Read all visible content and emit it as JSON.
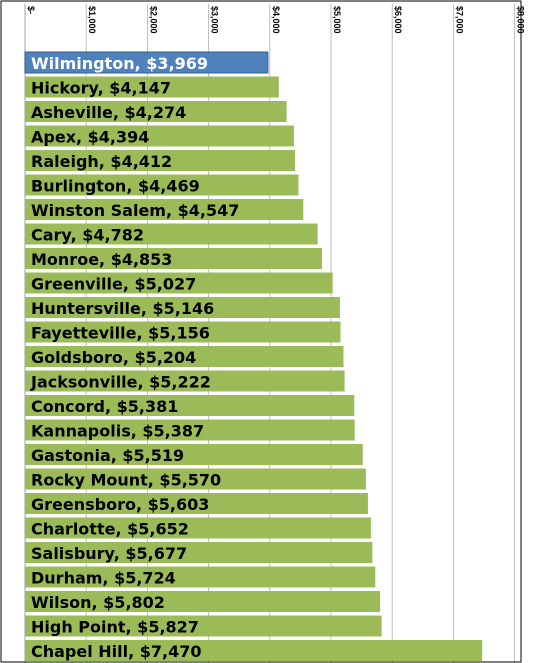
{
  "chart_data": {
    "type": "bar",
    "orientation": "horizontal",
    "x_ticks": [
      "$-",
      "$1,000",
      "$2,000",
      "$3,000",
      "$4,000",
      "$5,000",
      "$6,000",
      "$7,000",
      "$8,000"
    ],
    "xlim": [
      0,
      8000
    ],
    "grid": true,
    "colors": {
      "default_bar": "#9bbb59",
      "highlight_bar": "#4f81bd",
      "highlight_label": "#ffffff",
      "label": "#000000",
      "grid": "#b0b0b0"
    },
    "bars": [
      {
        "label": "Wilmington, $3,969",
        "city": "Wilmington",
        "value": 3969,
        "highlight": true
      },
      {
        "label": "Hickory, $4,147",
        "city": "Hickory",
        "value": 4147
      },
      {
        "label": "Asheville, $4,274",
        "city": "Asheville",
        "value": 4274
      },
      {
        "label": "Apex, $4,394",
        "city": "Apex",
        "value": 4394
      },
      {
        "label": "Raleigh, $4,412",
        "city": "Raleigh",
        "value": 4412
      },
      {
        "label": "Burlington, $4,469",
        "city": "Burlington",
        "value": 4469
      },
      {
        "label": "Winston Salem, $4,547",
        "city": "Winston Salem",
        "value": 4547
      },
      {
        "label": "Cary, $4,782",
        "city": "Cary",
        "value": 4782
      },
      {
        "label": "Monroe, $4,853",
        "city": "Monroe",
        "value": 4853
      },
      {
        "label": "Greenville, $5,027",
        "city": "Greenville",
        "value": 5027
      },
      {
        "label": "Huntersville, $5,146",
        "city": "Huntersville",
        "value": 5146
      },
      {
        "label": "Fayetteville, $5,156",
        "city": "Fayetteville",
        "value": 5156
      },
      {
        "label": "Goldsboro, $5,204",
        "city": "Goldsboro",
        "value": 5204
      },
      {
        "label": "Jacksonville, $5,222",
        "city": "Jacksonville",
        "value": 5222
      },
      {
        "label": "Concord, $5,381",
        "city": "Concord",
        "value": 5381
      },
      {
        "label": "Kannapolis, $5,387",
        "city": "Kannapolis",
        "value": 5387
      },
      {
        "label": "Gastonia, $5,519",
        "city": "Gastonia",
        "value": 5519
      },
      {
        "label": "Rocky Mount, $5,570",
        "city": "Rocky Mount",
        "value": 5570
      },
      {
        "label": "Greensboro, $5,603",
        "city": "Greensboro",
        "value": 5603
      },
      {
        "label": "Charlotte, $5,652",
        "city": "Charlotte",
        "value": 5652
      },
      {
        "label": "Salisbury, $5,677",
        "city": "Salisbury",
        "value": 5677
      },
      {
        "label": "Durham, $5,724",
        "city": "Durham",
        "value": 5724
      },
      {
        "label": "Wilson, $5,802",
        "city": "Wilson",
        "value": 5802
      },
      {
        "label": "High Point, $5,827",
        "city": "High Point",
        "value": 5827
      },
      {
        "label": "Chapel Hill, $7,470",
        "city": "Chapel Hill",
        "value": 7470
      }
    ]
  }
}
